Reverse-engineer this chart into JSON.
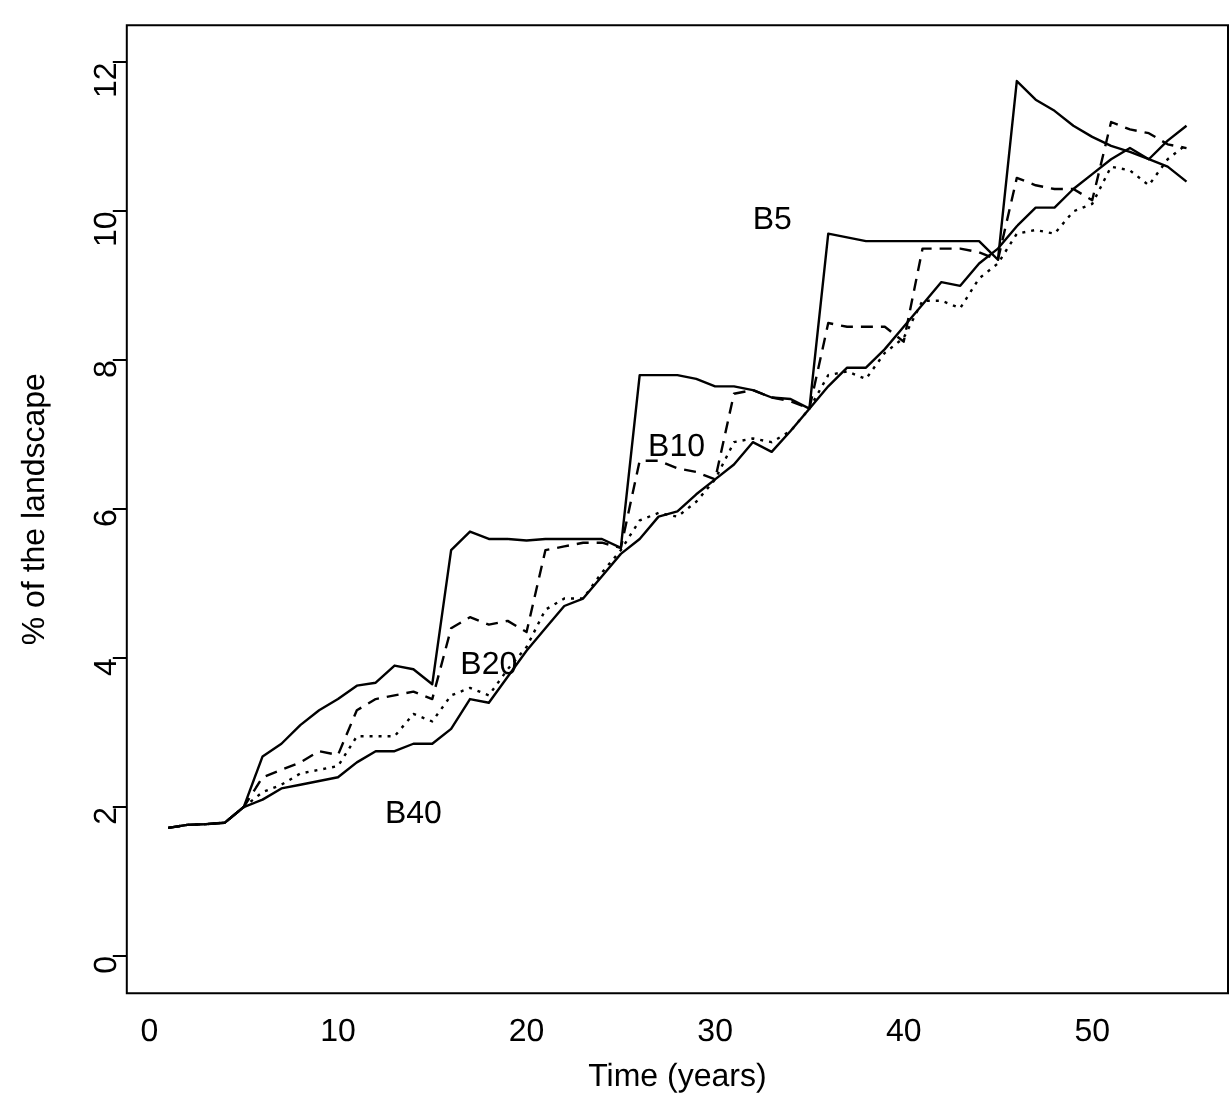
{
  "chart_data": {
    "type": "line",
    "xlabel": "Time (years)",
    "ylabel": "% of the landscape",
    "x": [
      1,
      2,
      3,
      4,
      5,
      6,
      7,
      8,
      9,
      10,
      11,
      12,
      13,
      14,
      15,
      16,
      17,
      18,
      19,
      20,
      21,
      22,
      23,
      24,
      25,
      26,
      27,
      28,
      29,
      30,
      31,
      32,
      33,
      34,
      35,
      36,
      37,
      38,
      39,
      40,
      41,
      42,
      43,
      44,
      45,
      46,
      47,
      48,
      49,
      50,
      51,
      52,
      53,
      54,
      55
    ],
    "series": [
      {
        "name": "B5",
        "color": "#000000",
        "line_style": "solid",
        "values": [
          1.72,
          1.76,
          1.77,
          1.79,
          2.0,
          2.68,
          2.85,
          3.1,
          3.3,
          3.45,
          3.63,
          3.67,
          3.9,
          3.85,
          3.65,
          5.45,
          5.7,
          5.6,
          5.6,
          5.58,
          5.6,
          5.6,
          5.6,
          5.6,
          5.48,
          7.8,
          7.8,
          7.8,
          7.75,
          7.65,
          7.65,
          7.6,
          7.5,
          7.48,
          7.35,
          9.7,
          9.65,
          9.6,
          9.6,
          9.6,
          9.6,
          9.6,
          9.6,
          9.6,
          9.35,
          11.75,
          11.5,
          11.35,
          11.15,
          11.0,
          10.88,
          10.8,
          10.7,
          10.6,
          10.4
        ]
      },
      {
        "name": "B10",
        "color": "#000000",
        "line_style": "dashed",
        "values": [
          1.72,
          1.76,
          1.77,
          1.79,
          2.0,
          2.4,
          2.5,
          2.6,
          2.75,
          2.7,
          3.3,
          3.45,
          3.5,
          3.55,
          3.45,
          4.4,
          4.55,
          4.45,
          4.5,
          4.35,
          5.45,
          5.5,
          5.55,
          5.55,
          5.48,
          6.65,
          6.65,
          6.55,
          6.5,
          6.4,
          7.55,
          7.6,
          7.5,
          7.45,
          7.35,
          8.5,
          8.45,
          8.45,
          8.45,
          8.25,
          9.5,
          9.5,
          9.5,
          9.45,
          9.35,
          10.45,
          10.35,
          10.3,
          10.3,
          10.15,
          11.2,
          11.1,
          11.05,
          10.9,
          10.85
        ]
      },
      {
        "name": "B20",
        "color": "#000000",
        "line_style": "dotted",
        "values": [
          1.72,
          1.76,
          1.77,
          1.79,
          2.0,
          2.2,
          2.3,
          2.45,
          2.5,
          2.55,
          2.95,
          2.95,
          2.95,
          3.25,
          3.15,
          3.5,
          3.6,
          3.5,
          3.85,
          4.15,
          4.65,
          4.8,
          4.8,
          5.15,
          5.45,
          5.85,
          5.95,
          5.9,
          6.1,
          6.4,
          6.9,
          6.95,
          6.9,
          7.05,
          7.35,
          7.8,
          7.85,
          7.75,
          8.1,
          8.3,
          8.8,
          8.8,
          8.7,
          9.1,
          9.3,
          9.7,
          9.75,
          9.7,
          10.0,
          10.1,
          10.6,
          10.55,
          10.35,
          10.7,
          10.9
        ]
      },
      {
        "name": "B40",
        "color": "#000000",
        "line_style": "solid",
        "values": [
          1.72,
          1.76,
          1.77,
          1.79,
          2.0,
          2.1,
          2.25,
          2.3,
          2.35,
          2.4,
          2.6,
          2.75,
          2.75,
          2.85,
          2.85,
          3.05,
          3.45,
          3.4,
          3.75,
          4.1,
          4.4,
          4.7,
          4.8,
          5.1,
          5.4,
          5.6,
          5.9,
          5.97,
          6.2,
          6.4,
          6.6,
          6.9,
          6.77,
          7.05,
          7.35,
          7.65,
          7.9,
          7.9,
          8.15,
          8.45,
          8.75,
          9.05,
          9.0,
          9.3,
          9.5,
          9.8,
          10.05,
          10.05,
          10.3,
          10.5,
          10.7,
          10.85,
          10.7,
          10.95,
          11.15
        ]
      }
    ],
    "xlim": [
      -1.2,
      57.2
    ],
    "xticks": [
      0,
      10,
      20,
      30,
      40,
      50
    ],
    "ylim": [
      -0.5,
      12.5
    ],
    "yticks": [
      0,
      2,
      4,
      6,
      8,
      10,
      12
    ],
    "grid": false,
    "legend": false,
    "marker": "none"
  }
}
